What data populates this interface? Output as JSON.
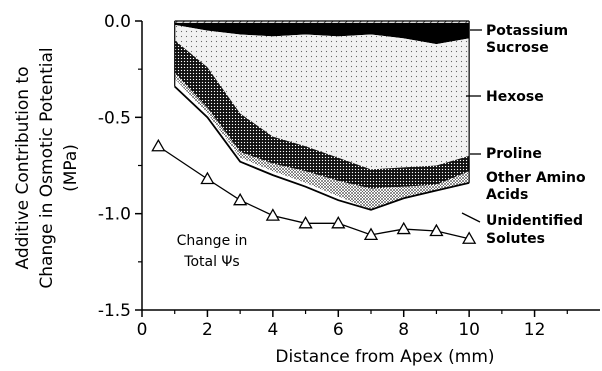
{
  "chart_data": {
    "type": "area",
    "title": "",
    "xlabel": "Distance from Apex (mm)",
    "ylabel_lines": [
      "Additive Contribution to",
      "Change in Osmotic Potential",
      "(MPa)"
    ],
    "xlim": [
      0,
      14
    ],
    "ylim": [
      -1.5,
      0.0
    ],
    "x_ticks": [
      0,
      2,
      4,
      6,
      8,
      10,
      12
    ],
    "x_tick_labels": [
      "0",
      "2",
      "4",
      "6",
      "8",
      "10",
      "12"
    ],
    "y_ticks": [
      0.0,
      -0.5,
      -1.0,
      -1.5
    ],
    "y_tick_labels": [
      "0.0",
      "-0.5",
      "-1.0",
      "-1.5"
    ],
    "grid": false,
    "x": [
      1,
      2,
      3,
      4,
      5,
      6,
      7,
      8,
      9,
      10
    ],
    "boundaries": {
      "potassium_bottom": [
        -0.01,
        -0.01,
        -0.01,
        -0.01,
        -0.01,
        -0.01,
        -0.01,
        -0.01,
        -0.01,
        -0.01
      ],
      "sucrose_bottom": [
        -0.02,
        -0.05,
        -0.07,
        -0.08,
        -0.07,
        -0.08,
        -0.07,
        -0.09,
        -0.12,
        -0.09
      ],
      "hexose_bottom": [
        -0.1,
        -0.24,
        -0.48,
        -0.6,
        -0.65,
        -0.71,
        -0.77,
        -0.76,
        -0.75,
        -0.7
      ],
      "proline_bottom": [
        -0.27,
        -0.45,
        -0.68,
        -0.74,
        -0.78,
        -0.83,
        -0.87,
        -0.86,
        -0.85,
        -0.78
      ],
      "other_amino_acids_bottom": [
        -0.3,
        -0.48,
        -0.71,
        -0.78,
        -0.84,
        -0.91,
        -0.98,
        -0.92,
        -0.88,
        -0.84
      ],
      "unidentified_solutes_bottom": [
        -0.34,
        -0.5,
        -0.73,
        -0.8,
        -0.86,
        -0.93,
        -0.98,
        -0.92,
        -0.88,
        -0.84
      ]
    },
    "series": [
      {
        "name": "Potassium",
        "pattern": "hatch"
      },
      {
        "name": "Sucrose",
        "pattern": "solid"
      },
      {
        "name": "Hexose",
        "pattern": "light-dots"
      },
      {
        "name": "Proline",
        "pattern": "dense-dots"
      },
      {
        "name": "Other Amino Acids",
        "pattern": "fine-dots"
      },
      {
        "name": "Unidentified Solutes",
        "pattern": "white"
      }
    ],
    "labels": {
      "potassium": "Potassium",
      "sucrose": "Sucrose",
      "hexose": "Hexose",
      "proline": "Proline",
      "other_amino_1": "Other Amino",
      "other_amino_2": "Acids",
      "unidentified_1": "Unidentified",
      "unidentified_2": "Solutes"
    },
    "total_series": {
      "label_line1": "Change in",
      "label_line2": "Total Ψs",
      "marker": "triangle-open",
      "x": [
        0.5,
        2,
        3,
        4,
        5,
        6,
        7,
        8,
        9,
        10
      ],
      "y": [
        -0.65,
        -0.82,
        -0.93,
        -1.01,
        -1.05,
        -1.05,
        -1.11,
        -1.08,
        -1.09,
        -1.13
      ]
    }
  }
}
